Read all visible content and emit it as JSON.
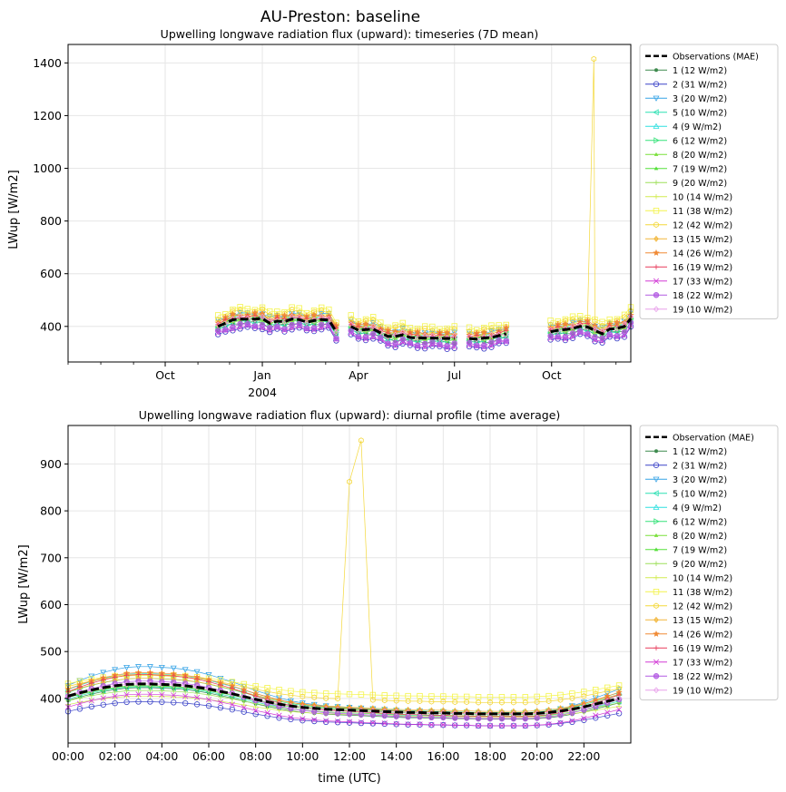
{
  "figure_title": "AU-Preston: baseline",
  "series_styles": [
    {
      "label_top": "1 (12 W/m2)",
      "color": "#3e8a4e",
      "marker": "dot"
    },
    {
      "label_top": "2 (31 W/m2)",
      "color": "#3c44c8",
      "marker": "circle"
    },
    {
      "label_top": "3 (20 W/m2)",
      "color": "#36a3e6",
      "marker": "tri-down"
    },
    {
      "label_top": "5 (10 W/m2)",
      "color": "#2de0b4",
      "marker": "tri-left"
    },
    {
      "label_top": "4 (9 W/m2)",
      "color": "#2ee0e0",
      "marker": "tri-up"
    },
    {
      "label_top": "6 (12 W/m2)",
      "color": "#36e27a",
      "marker": "tri-right"
    },
    {
      "label_top": "8 (20 W/m2)",
      "color": "#7ae03a",
      "marker": "tri-small"
    },
    {
      "label_top": "7 (19 W/m2)",
      "color": "#55e03a",
      "marker": "tri-small"
    },
    {
      "label_top": "9 (20 W/m2)",
      "color": "#9ee05a",
      "marker": "plus"
    },
    {
      "label_top": "10 (14 W/m2)",
      "color": "#d2ec50",
      "marker": "plus"
    },
    {
      "label_top": "11 (38 W/m2)",
      "color": "#f4f44a",
      "marker": "square"
    },
    {
      "label_top": "12 (42 W/m2)",
      "color": "#f4d83a",
      "marker": "hexagon"
    },
    {
      "label_top": "13 (15 W/m2)",
      "color": "#f2b63a",
      "marker": "diamond"
    },
    {
      "label_top": "14 (26 W/m2)",
      "color": "#f08a36",
      "marker": "star"
    },
    {
      "label_top": "16 (19 W/m2)",
      "color": "#e83a5a",
      "marker": "plus"
    },
    {
      "label_top": "17 (33 W/m2)",
      "color": "#d23ad6",
      "marker": "x"
    },
    {
      "label_top": "18 (22 W/m2)",
      "color": "#b25ae2",
      "marker": "circle-filled"
    },
    {
      "label_top": "19 (10 W/m2)",
      "color": "#e8a0ea",
      "marker": "diamond-open"
    }
  ],
  "chart_data": [
    {
      "type": "line",
      "title": "Upwelling longwave radiation flux (upward): timeseries (7D mean)",
      "xlabel": "",
      "ylabel": "LWup [W/m2]",
      "x_unit": "date",
      "xlim": [
        "2003-07-01",
        "2004-12-15"
      ],
      "ylim": [
        265,
        1470
      ],
      "yticks": [
        400,
        600,
        800,
        1000,
        1200,
        1400
      ],
      "xticks_major": [
        {
          "date": "2003-10-01",
          "label": "Oct",
          "sub": ""
        },
        {
          "date": "2004-01-01",
          "label": "Jan",
          "sub": "2004"
        },
        {
          "date": "2004-04-01",
          "label": "Apr",
          "sub": ""
        },
        {
          "date": "2004-07-01",
          "label": "Jul",
          "sub": ""
        },
        {
          "date": "2004-10-01",
          "label": "Oct",
          "sub": ""
        }
      ],
      "xticks_minor": [
        "2003-07-01",
        "2003-08-01",
        "2003-09-01",
        "2003-11-01",
        "2003-12-01",
        "2004-02-01",
        "2004-03-01",
        "2004-05-01",
        "2004-06-01",
        "2004-08-01",
        "2004-09-01",
        "2004-11-01",
        "2004-12-01"
      ],
      "grid": true,
      "legend": "outside-right",
      "observation_label": "Observations (MAE)",
      "segments": [
        {
          "x": [
            "2003-11-20",
            "2003-11-27",
            "2003-12-04",
            "2003-12-11",
            "2003-12-18",
            "2003-12-25",
            "2004-01-01",
            "2004-01-08",
            "2004-01-15",
            "2004-01-22",
            "2004-01-29",
            "2004-02-05",
            "2004-02-12",
            "2004-02-19",
            "2004-02-26",
            "2004-03-04",
            "2004-03-11"
          ],
          "obs": [
            400,
            412,
            425,
            428,
            427,
            428,
            430,
            412,
            420,
            418,
            428,
            426,
            416,
            422,
            426,
            424,
            380
          ]
        },
        {
          "x": [
            "2004-03-25",
            "2004-04-01",
            "2004-04-08",
            "2004-04-15",
            "2004-04-22",
            "2004-04-29",
            "2004-05-06",
            "2004-05-13",
            "2004-05-20",
            "2004-05-27",
            "2004-06-03",
            "2004-06-10",
            "2004-06-17",
            "2004-06-24",
            "2004-07-01"
          ],
          "obs": [
            400,
            385,
            388,
            390,
            375,
            362,
            362,
            368,
            358,
            356,
            356,
            356,
            355,
            354,
            355
          ]
        },
        {
          "x": [
            "2004-07-15",
            "2004-07-22",
            "2004-07-29",
            "2004-08-05",
            "2004-08-12",
            "2004-08-19"
          ],
          "obs": [
            354,
            352,
            356,
            358,
            365,
            372
          ]
        },
        {
          "x": [
            "2004-09-30",
            "2004-10-07",
            "2004-10-14",
            "2004-10-21",
            "2004-10-28",
            "2004-11-04",
            "2004-11-11",
            "2004-11-18",
            "2004-11-25",
            "2004-12-02",
            "2004-12-09",
            "2004-12-15"
          ],
          "obs": [
            380,
            385,
            388,
            392,
            400,
            398,
            384,
            372,
            390,
            392,
            400,
            430
          ]
        }
      ],
      "series_offsets": [
        -14,
        -35,
        20,
        -10,
        8,
        4,
        2,
        0,
        -4,
        16,
        40,
        30,
        12,
        18,
        8,
        -30,
        -22,
        4
      ],
      "spike": {
        "series_index": 11,
        "x": "2004-11-10",
        "y": 1415
      }
    },
    {
      "type": "line",
      "title": "Upwelling longwave radiation flux (upward): diurnal profile (time average)",
      "xlabel": "time (UTC)",
      "ylabel": "LWup [W/m2]",
      "xlim": [
        0,
        24
      ],
      "ylim": [
        305,
        982
      ],
      "yticks": [
        400,
        500,
        600,
        700,
        800,
        900
      ],
      "xticks": [
        0,
        2,
        4,
        6,
        8,
        10,
        12,
        14,
        16,
        18,
        20,
        22
      ],
      "xtick_labels": [
        "00:00",
        "02:00",
        "04:00",
        "06:00",
        "08:00",
        "10:00",
        "12:00",
        "14:00",
        "16:00",
        "18:00",
        "20:00",
        "22:00"
      ],
      "grid": true,
      "legend": "outside-right",
      "observation_label": "Observation (MAE)",
      "x": [
        0,
        0.5,
        1,
        1.5,
        2,
        2.5,
        3,
        3.5,
        4,
        4.5,
        5,
        5.5,
        6,
        6.5,
        7,
        7.5,
        8,
        8.5,
        9,
        9.5,
        10,
        10.5,
        11,
        11.5,
        12,
        12.5,
        13,
        13.5,
        14,
        14.5,
        15,
        15.5,
        16,
        16.5,
        17,
        17.5,
        18,
        18.5,
        19,
        19.5,
        20,
        20.5,
        21,
        21.5,
        22,
        22.5,
        23,
        23.5
      ],
      "obs": [
        405,
        412,
        418,
        423,
        427,
        430,
        431,
        431,
        430,
        429,
        427,
        424,
        420,
        415,
        410,
        404,
        398,
        393,
        388,
        384,
        381,
        379,
        377,
        376,
        375,
        374,
        373,
        372,
        371,
        370,
        370,
        369,
        369,
        368,
        368,
        367,
        367,
        367,
        367,
        367,
        368,
        370,
        373,
        377,
        382,
        388,
        394,
        400
      ],
      "series_amplitude": [
        1.05,
        0.8,
        1.55,
        1.0,
        1.3,
        1.15,
        0.9,
        0.95,
        0.85,
        0.7,
        0.75,
        0.9,
        1.1,
        1.35,
        1.4,
        1.05,
        1.25,
        1.0
      ],
      "series_offsets": [
        -10,
        -30,
        15,
        -6,
        10,
        6,
        0,
        -2,
        -8,
        -14,
        30,
        22,
        8,
        10,
        4,
        -24,
        -4,
        0
      ],
      "spike": {
        "series_index": 11,
        "x": [
          12,
          12.5
        ],
        "y": [
          862,
          950
        ]
      }
    }
  ]
}
